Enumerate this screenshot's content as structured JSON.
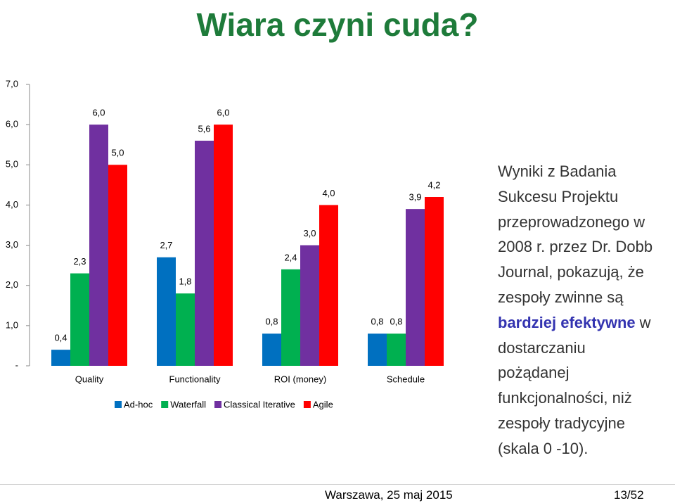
{
  "slide_title": "Wiara czyni cuda?",
  "chart_data": {
    "type": "bar",
    "categories": [
      "Quality",
      "Functionality",
      "ROI (money)",
      "Schedule"
    ],
    "series": [
      {
        "name": "Ad-hoc",
        "color": "#0070c0",
        "values": [
          0.4,
          2.7,
          0.8,
          0.8
        ],
        "value_labels": [
          "0,4",
          "2,7",
          "0,8",
          "0,8"
        ]
      },
      {
        "name": "Waterfall",
        "color": "#00b050",
        "values": [
          2.3,
          1.8,
          2.4,
          0.8
        ],
        "value_labels": [
          "2,3",
          "1,8",
          "2,4",
          "0,8"
        ]
      },
      {
        "name": "Classical Iterative",
        "color": "#7030a0",
        "values": [
          6.0,
          5.6,
          3.0,
          3.9
        ],
        "value_labels": [
          "6,0",
          "5,6",
          "3,0",
          "3,9"
        ]
      },
      {
        "name": "Agile",
        "color": "#ff0000",
        "values": [
          5.0,
          6.0,
          4.0,
          4.2
        ],
        "value_labels": [
          "5,0",
          "6,0",
          "4,0",
          "4,2"
        ]
      }
    ],
    "ylim": [
      0,
      7
    ],
    "yticks": [
      {
        "value": 0,
        "label": "-"
      },
      {
        "value": 1,
        "label": "1,0"
      },
      {
        "value": 2,
        "label": "2,0"
      },
      {
        "value": 3,
        "label": "3,0"
      },
      {
        "value": 4,
        "label": "4,0"
      },
      {
        "value": 5,
        "label": "5,0"
      },
      {
        "value": 6,
        "label": "6,0"
      },
      {
        "value": 7,
        "label": "7,0"
      }
    ],
    "grid": false,
    "legend": "bottom"
  },
  "body": {
    "before": [
      "Wyniki z Badania",
      "Sukcesu Projektu",
      "przeprowadzonego w",
      "2008 r. przez Dr. Dobb",
      "Journal, pokazują, że",
      "zespoły zwinne są"
    ],
    "highlight": "bardziej efektywne",
    "after_highlight": "w",
    "after": [
      "dostarczaniu",
      "pożądanej",
      "funkcjonalności, niż",
      "zespoły tradycyjne",
      "(skala 0 -10)."
    ]
  },
  "footer": {
    "place_date": "Warszawa, 25 maj 2015",
    "page": "13/52"
  }
}
